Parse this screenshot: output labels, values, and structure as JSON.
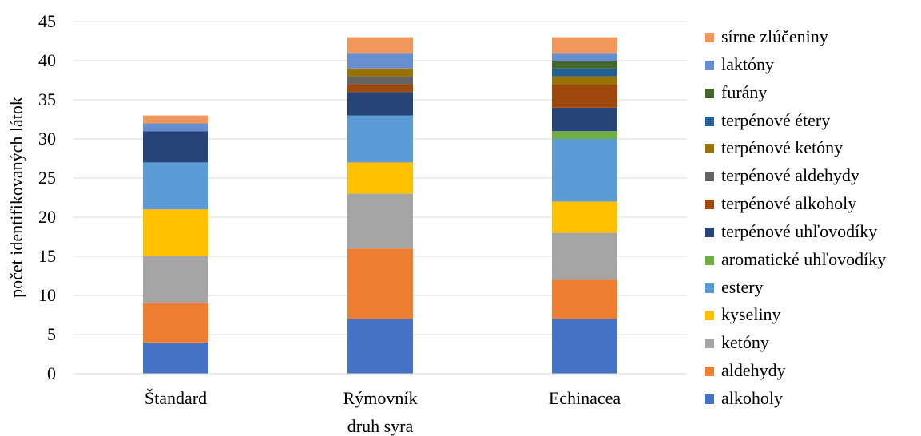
{
  "chart_data": {
    "type": "bar",
    "stacked": true,
    "categories": [
      "Štandard",
      "Rýmovník",
      "Echinacea"
    ],
    "xlabel": "druh syra",
    "ylabel": "počet identifikovaných látok",
    "ylim": [
      0,
      45
    ],
    "yticks": [
      "0",
      "5",
      "10",
      "15",
      "20",
      "25",
      "30",
      "35",
      "40",
      "45"
    ],
    "grid": true,
    "legend_position": "right",
    "series": [
      {
        "name": "alkoholy",
        "color": "#4472C4",
        "values": [
          4,
          7,
          7
        ]
      },
      {
        "name": "aldehydy",
        "color": "#ED7D31",
        "values": [
          5,
          9,
          5
        ]
      },
      {
        "name": "ketóny",
        "color": "#A5A5A5",
        "values": [
          6,
          7,
          6
        ]
      },
      {
        "name": "kyseliny",
        "color": "#FFC000",
        "values": [
          6,
          4,
          4
        ]
      },
      {
        "name": "estery",
        "color": "#5B9BD5",
        "values": [
          6,
          6,
          8
        ]
      },
      {
        "name": "aromatické uhľovodíky",
        "color": "#70AD47",
        "values": [
          0,
          0,
          1
        ]
      },
      {
        "name": "terpénové uhľovodíky",
        "color": "#264478",
        "values": [
          4,
          3,
          3
        ]
      },
      {
        "name": "terpénové alkoholy",
        "color": "#9E480E",
        "values": [
          0,
          1,
          3
        ]
      },
      {
        "name": "terpénové aldehydy",
        "color": "#636363",
        "values": [
          0,
          1,
          0
        ]
      },
      {
        "name": "terpénové ketóny",
        "color": "#997300",
        "values": [
          0,
          1,
          1
        ]
      },
      {
        "name": "terpénové étery",
        "color": "#255E91",
        "values": [
          0,
          0,
          1
        ]
      },
      {
        "name": "furány",
        "color": "#43682B",
        "values": [
          0,
          0,
          1
        ]
      },
      {
        "name": "laktóny",
        "color": "#698ED0",
        "values": [
          1,
          2,
          1
        ]
      },
      {
        "name": "sírne zlúčeniny",
        "color": "#F1975A",
        "values": [
          1,
          2,
          2
        ]
      }
    ]
  }
}
